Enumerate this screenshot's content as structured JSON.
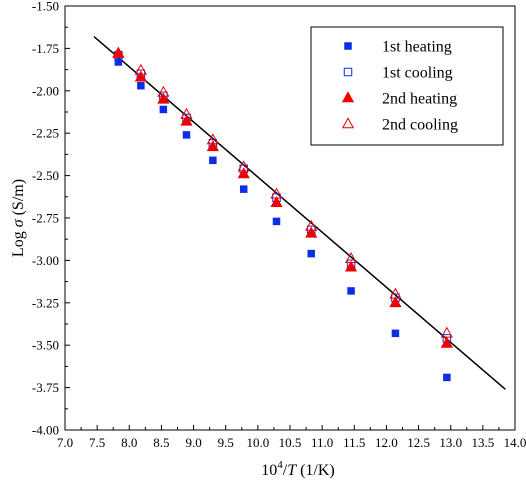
{
  "chart_data": {
    "type": "scatter",
    "title": "",
    "xlabel": {
      "prefix": "10",
      "sup": "4",
      "slash": "/",
      "var": "T",
      "unit": " (1/K)"
    },
    "ylabel": {
      "prefix": "Log ",
      "var": "σ",
      "unit": " (S/m)"
    },
    "xlim": [
      7.0,
      14.0
    ],
    "ylim": [
      -4.0,
      -1.5
    ],
    "xticks": [
      "7.0",
      "7.5",
      "8.0",
      "8.5",
      "9.0",
      "9.5",
      "10.0",
      "10.5",
      "11.0",
      "11.5",
      "12.0",
      "12.5",
      "13.0",
      "13.5",
      "14.0"
    ],
    "yticks": [
      "-1.50",
      "-1.75",
      "-2.00",
      "-2.25",
      "-2.50",
      "-2.75",
      "-3.00",
      "-3.25",
      "-3.50",
      "-3.75",
      "-4.00"
    ],
    "legend_position": "top-right",
    "series": [
      {
        "name": "1st heating",
        "marker": "square-filled",
        "color": "#0a2ee8",
        "x": [
          7.83,
          8.18,
          8.53,
          8.89,
          9.3,
          9.78,
          10.29,
          10.83,
          11.45,
          12.14,
          12.94
        ],
        "y": [
          -1.83,
          -1.97,
          -2.11,
          -2.26,
          -2.41,
          -2.58,
          -2.77,
          -2.96,
          -3.18,
          -3.43,
          -3.69
        ]
      },
      {
        "name": "1st cooling",
        "marker": "square-open",
        "color": "#0a2ee8",
        "x": [
          7.83,
          8.18,
          8.53,
          8.89,
          9.3,
          9.78,
          10.29,
          10.83,
          11.45,
          12.14,
          12.94
        ],
        "y": [
          -1.79,
          -1.9,
          -2.03,
          -2.16,
          -2.31,
          -2.46,
          -2.63,
          -2.82,
          -3.02,
          -3.22,
          -3.46
        ]
      },
      {
        "name": "2nd heating",
        "marker": "triangle-filled",
        "color": "#ee0000",
        "x": [
          7.83,
          8.18,
          8.53,
          8.89,
          9.3,
          9.78,
          10.29,
          10.83,
          11.45,
          12.14,
          12.94
        ],
        "y": [
          -1.78,
          -1.92,
          -2.05,
          -2.18,
          -2.33,
          -2.49,
          -2.66,
          -2.84,
          -3.04,
          -3.25,
          -3.49
        ]
      },
      {
        "name": "2nd cooling",
        "marker": "triangle-open",
        "color": "#ee0000",
        "x": [
          7.83,
          8.18,
          8.53,
          8.89,
          9.3,
          9.78,
          10.29,
          10.83,
          11.45,
          12.14,
          12.94
        ],
        "y": [
          -1.78,
          -1.88,
          -2.01,
          -2.14,
          -2.29,
          -2.45,
          -2.61,
          -2.8,
          -2.99,
          -3.2,
          -3.43
        ]
      }
    ],
    "fit_line": {
      "x": [
        7.45,
        13.85
      ],
      "y": [
        -1.68,
        -3.76
      ],
      "color": "#000000"
    }
  }
}
